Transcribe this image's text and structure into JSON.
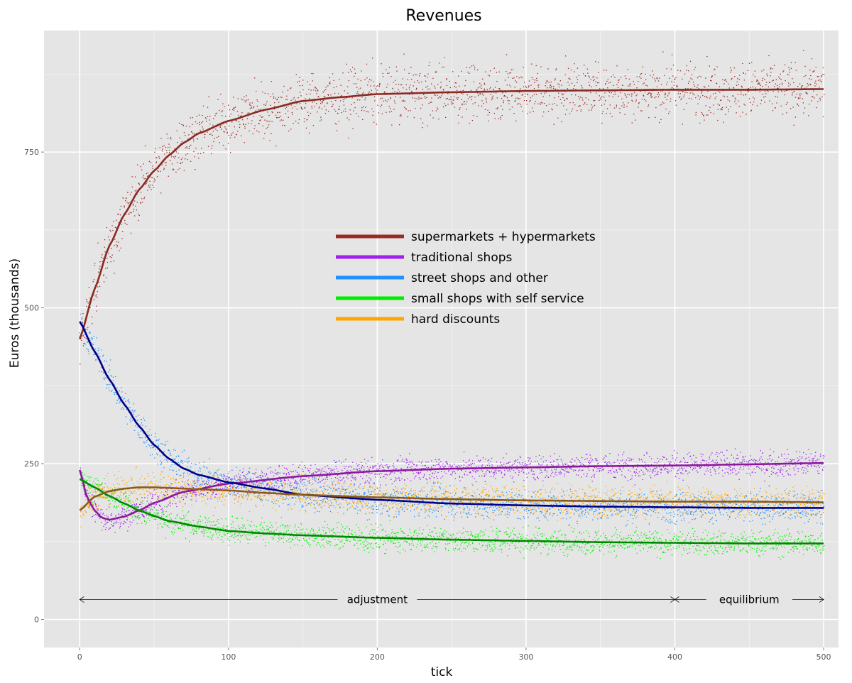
{
  "chart_data": {
    "type": "scatter",
    "title": "Revenues",
    "xlabel": "tick",
    "ylabel": "Euros (thousands)",
    "xlim": [
      -24,
      510
    ],
    "ylim": [
      -45,
      945
    ],
    "x_ticks": [
      0,
      100,
      200,
      300,
      400,
      500
    ],
    "y_ticks": [
      0,
      250,
      500,
      750
    ],
    "grid": true,
    "legend_position": "center",
    "series": [
      {
        "name": "supermarkets + hypermarkets",
        "color": "#9B2A22",
        "spread": 22,
        "smooth": [
          [
            0,
            450
          ],
          [
            10,
            530
          ],
          [
            20,
            600
          ],
          [
            30,
            650
          ],
          [
            40,
            690
          ],
          [
            50,
            720
          ],
          [
            60,
            745
          ],
          [
            70,
            765
          ],
          [
            80,
            780
          ],
          [
            100,
            800
          ],
          [
            125,
            818
          ],
          [
            150,
            832
          ],
          [
            175,
            838
          ],
          [
            200,
            843
          ],
          [
            250,
            846
          ],
          [
            300,
            848
          ],
          [
            350,
            849
          ],
          [
            400,
            850
          ],
          [
            450,
            850
          ],
          [
            500,
            851
          ]
        ]
      },
      {
        "name": "traditional shops",
        "color": "#A020F0",
        "spread": 10,
        "smooth": [
          [
            0,
            240
          ],
          [
            5,
            195
          ],
          [
            10,
            175
          ],
          [
            15,
            163
          ],
          [
            20,
            160
          ],
          [
            30,
            165
          ],
          [
            40,
            175
          ],
          [
            50,
            187
          ],
          [
            70,
            205
          ],
          [
            100,
            218
          ],
          [
            150,
            230
          ],
          [
            200,
            238
          ],
          [
            250,
            242
          ],
          [
            300,
            244
          ],
          [
            350,
            246
          ],
          [
            400,
            247
          ],
          [
            450,
            249
          ],
          [
            500,
            251
          ]
        ]
      },
      {
        "name": "street shops and other",
        "color": "#1E90FF",
        "spread": 12,
        "smooth": [
          [
            0,
            478
          ],
          [
            10,
            430
          ],
          [
            20,
            385
          ],
          [
            30,
            345
          ],
          [
            40,
            310
          ],
          [
            50,
            280
          ],
          [
            60,
            258
          ],
          [
            70,
            242
          ],
          [
            80,
            232
          ],
          [
            100,
            220
          ],
          [
            125,
            210
          ],
          [
            150,
            200
          ],
          [
            200,
            192
          ],
          [
            250,
            186
          ],
          [
            300,
            183
          ],
          [
            350,
            181
          ],
          [
            400,
            180
          ],
          [
            450,
            179
          ],
          [
            500,
            179
          ]
        ]
      },
      {
        "name": "small shops with self service",
        "color": "#00EE00",
        "spread": 10,
        "smooth": [
          [
            0,
            225
          ],
          [
            10,
            212
          ],
          [
            20,
            198
          ],
          [
            30,
            186
          ],
          [
            40,
            175
          ],
          [
            50,
            166
          ],
          [
            60,
            158
          ],
          [
            80,
            149
          ],
          [
            100,
            142
          ],
          [
            125,
            138
          ],
          [
            150,
            135
          ],
          [
            200,
            131
          ],
          [
            250,
            128
          ],
          [
            300,
            126
          ],
          [
            350,
            124
          ],
          [
            400,
            123
          ],
          [
            450,
            122
          ],
          [
            500,
            122
          ]
        ]
      },
      {
        "name": "hard discounts",
        "color": "#FFA500",
        "spread": 12,
        "smooth": [
          [
            0,
            175
          ],
          [
            10,
            197
          ],
          [
            20,
            206
          ],
          [
            30,
            210
          ],
          [
            40,
            212
          ],
          [
            50,
            212
          ],
          [
            60,
            211
          ],
          [
            80,
            209
          ],
          [
            100,
            207
          ],
          [
            125,
            203
          ],
          [
            150,
            200
          ],
          [
            200,
            196
          ],
          [
            250,
            193
          ],
          [
            300,
            191
          ],
          [
            350,
            190
          ],
          [
            400,
            189
          ],
          [
            450,
            189
          ],
          [
            500,
            188
          ]
        ]
      }
    ],
    "trend_colors": [
      "#8B2A22",
      "#8B1A9A",
      "#00008B",
      "#008800",
      "#8B5A1A"
    ],
    "annotations": {
      "adjustment": {
        "label": "adjustment",
        "x_start": 0,
        "x_end": 400
      },
      "equilibrium": {
        "label": "equilibrium",
        "x_start": 400,
        "x_end": 500
      },
      "y": 32
    }
  }
}
